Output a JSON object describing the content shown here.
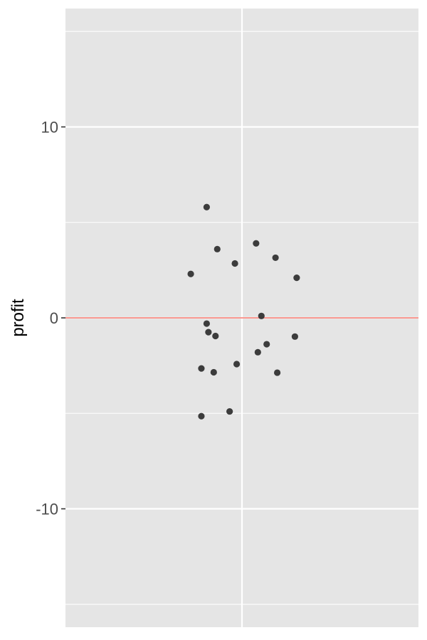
{
  "chart_data": {
    "type": "scatter",
    "title": "",
    "xlabel": "",
    "ylabel": "profit",
    "ylim": [
      -16.2,
      16.2
    ],
    "xlim": [
      -1,
      1
    ],
    "y_ticks": [
      -10,
      0,
      10
    ],
    "y_tick_labels": [
      "-10",
      "0",
      "10"
    ],
    "grid": true,
    "reference_line": {
      "y": 0,
      "color": "#f8766d"
    },
    "colors": {
      "panel": "#e5e5e5",
      "grid": "#ffffff",
      "point": "#333333"
    },
    "points": [
      {
        "x": -0.2,
        "y": 5.8
      },
      {
        "x": -0.14,
        "y": 3.6
      },
      {
        "x": 0.08,
        "y": 3.9
      },
      {
        "x": -0.04,
        "y": 2.85
      },
      {
        "x": 0.19,
        "y": 3.15
      },
      {
        "x": -0.29,
        "y": 2.3
      },
      {
        "x": 0.31,
        "y": 2.1
      },
      {
        "x": 0.11,
        "y": 0.1
      },
      {
        "x": -0.2,
        "y": -0.3
      },
      {
        "x": -0.19,
        "y": -0.75
      },
      {
        "x": -0.15,
        "y": -0.95
      },
      {
        "x": 0.3,
        "y": -0.98
      },
      {
        "x": 0.14,
        "y": -1.38
      },
      {
        "x": 0.09,
        "y": -1.8
      },
      {
        "x": -0.03,
        "y": -2.42
      },
      {
        "x": -0.23,
        "y": -2.65
      },
      {
        "x": -0.16,
        "y": -2.85
      },
      {
        "x": 0.2,
        "y": -2.87
      },
      {
        "x": -0.07,
        "y": -4.9
      },
      {
        "x": -0.23,
        "y": -5.15
      }
    ]
  }
}
